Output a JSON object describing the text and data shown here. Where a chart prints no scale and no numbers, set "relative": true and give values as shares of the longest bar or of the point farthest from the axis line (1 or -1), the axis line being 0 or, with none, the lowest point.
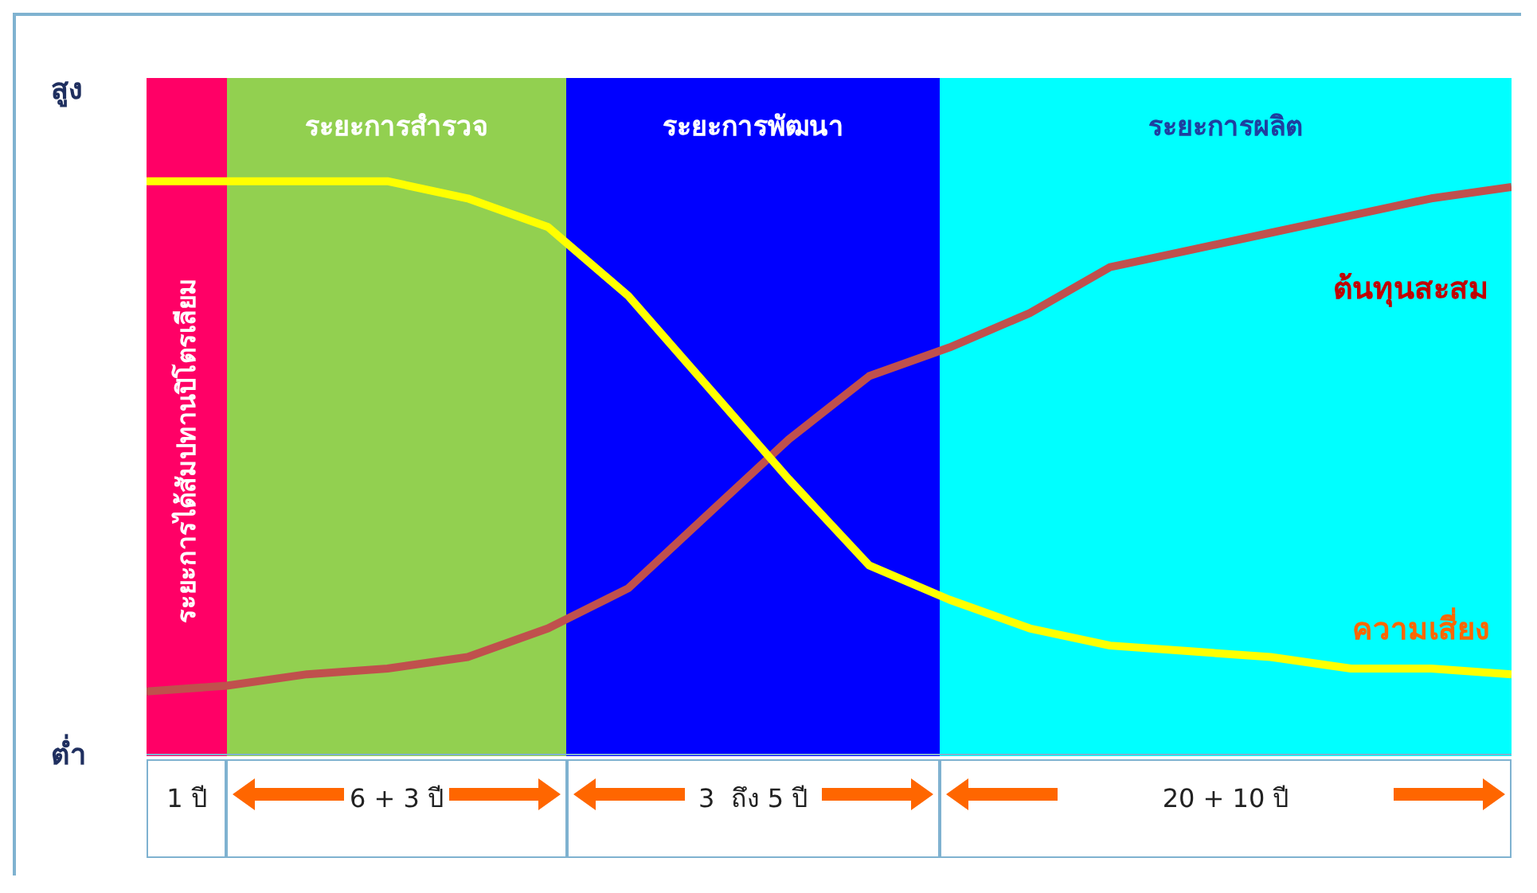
{
  "chart_data": {
    "type": "line",
    "relative": true,
    "legend": false,
    "marker": "none",
    "line_style": "solid",
    "categories": [
      null,
      null,
      null,
      null,
      null,
      null,
      null,
      null,
      null,
      null,
      null,
      null,
      null,
      null,
      null,
      null,
      null,
      null
    ],
    "series": [
      {
        "name": "ต้นทุนสะสม",
        "color": "#c0504d",
        "values": [
          0.11,
          0.12,
          0.14,
          0.15,
          0.17,
          0.22,
          0.29,
          0.42,
          0.55,
          0.66,
          0.71,
          0.77,
          0.85,
          0.88,
          0.91,
          0.94,
          0.97,
          0.99
        ]
      },
      {
        "name": "ความเสี่ยง",
        "color": "#ffff00",
        "values": [
          1.0,
          1.0,
          1.0,
          1.0,
          0.97,
          0.92,
          0.8,
          0.64,
          0.48,
          0.33,
          0.27,
          0.22,
          0.19,
          0.18,
          0.17,
          0.15,
          0.15,
          0.14
        ]
      }
    ],
    "annotations": [
      "สูง",
      "ต่ำ",
      "ระยะการได้สัมปทานปิโตรเลียม",
      "ระยะการสำรวจ",
      "ระยะการพัฒนา",
      "ระยะการผลิต",
      "1 ปี",
      "6 + 3 ปี",
      "3  ถึง 5 ปี",
      "20 + 10 ปี"
    ]
  }
}
